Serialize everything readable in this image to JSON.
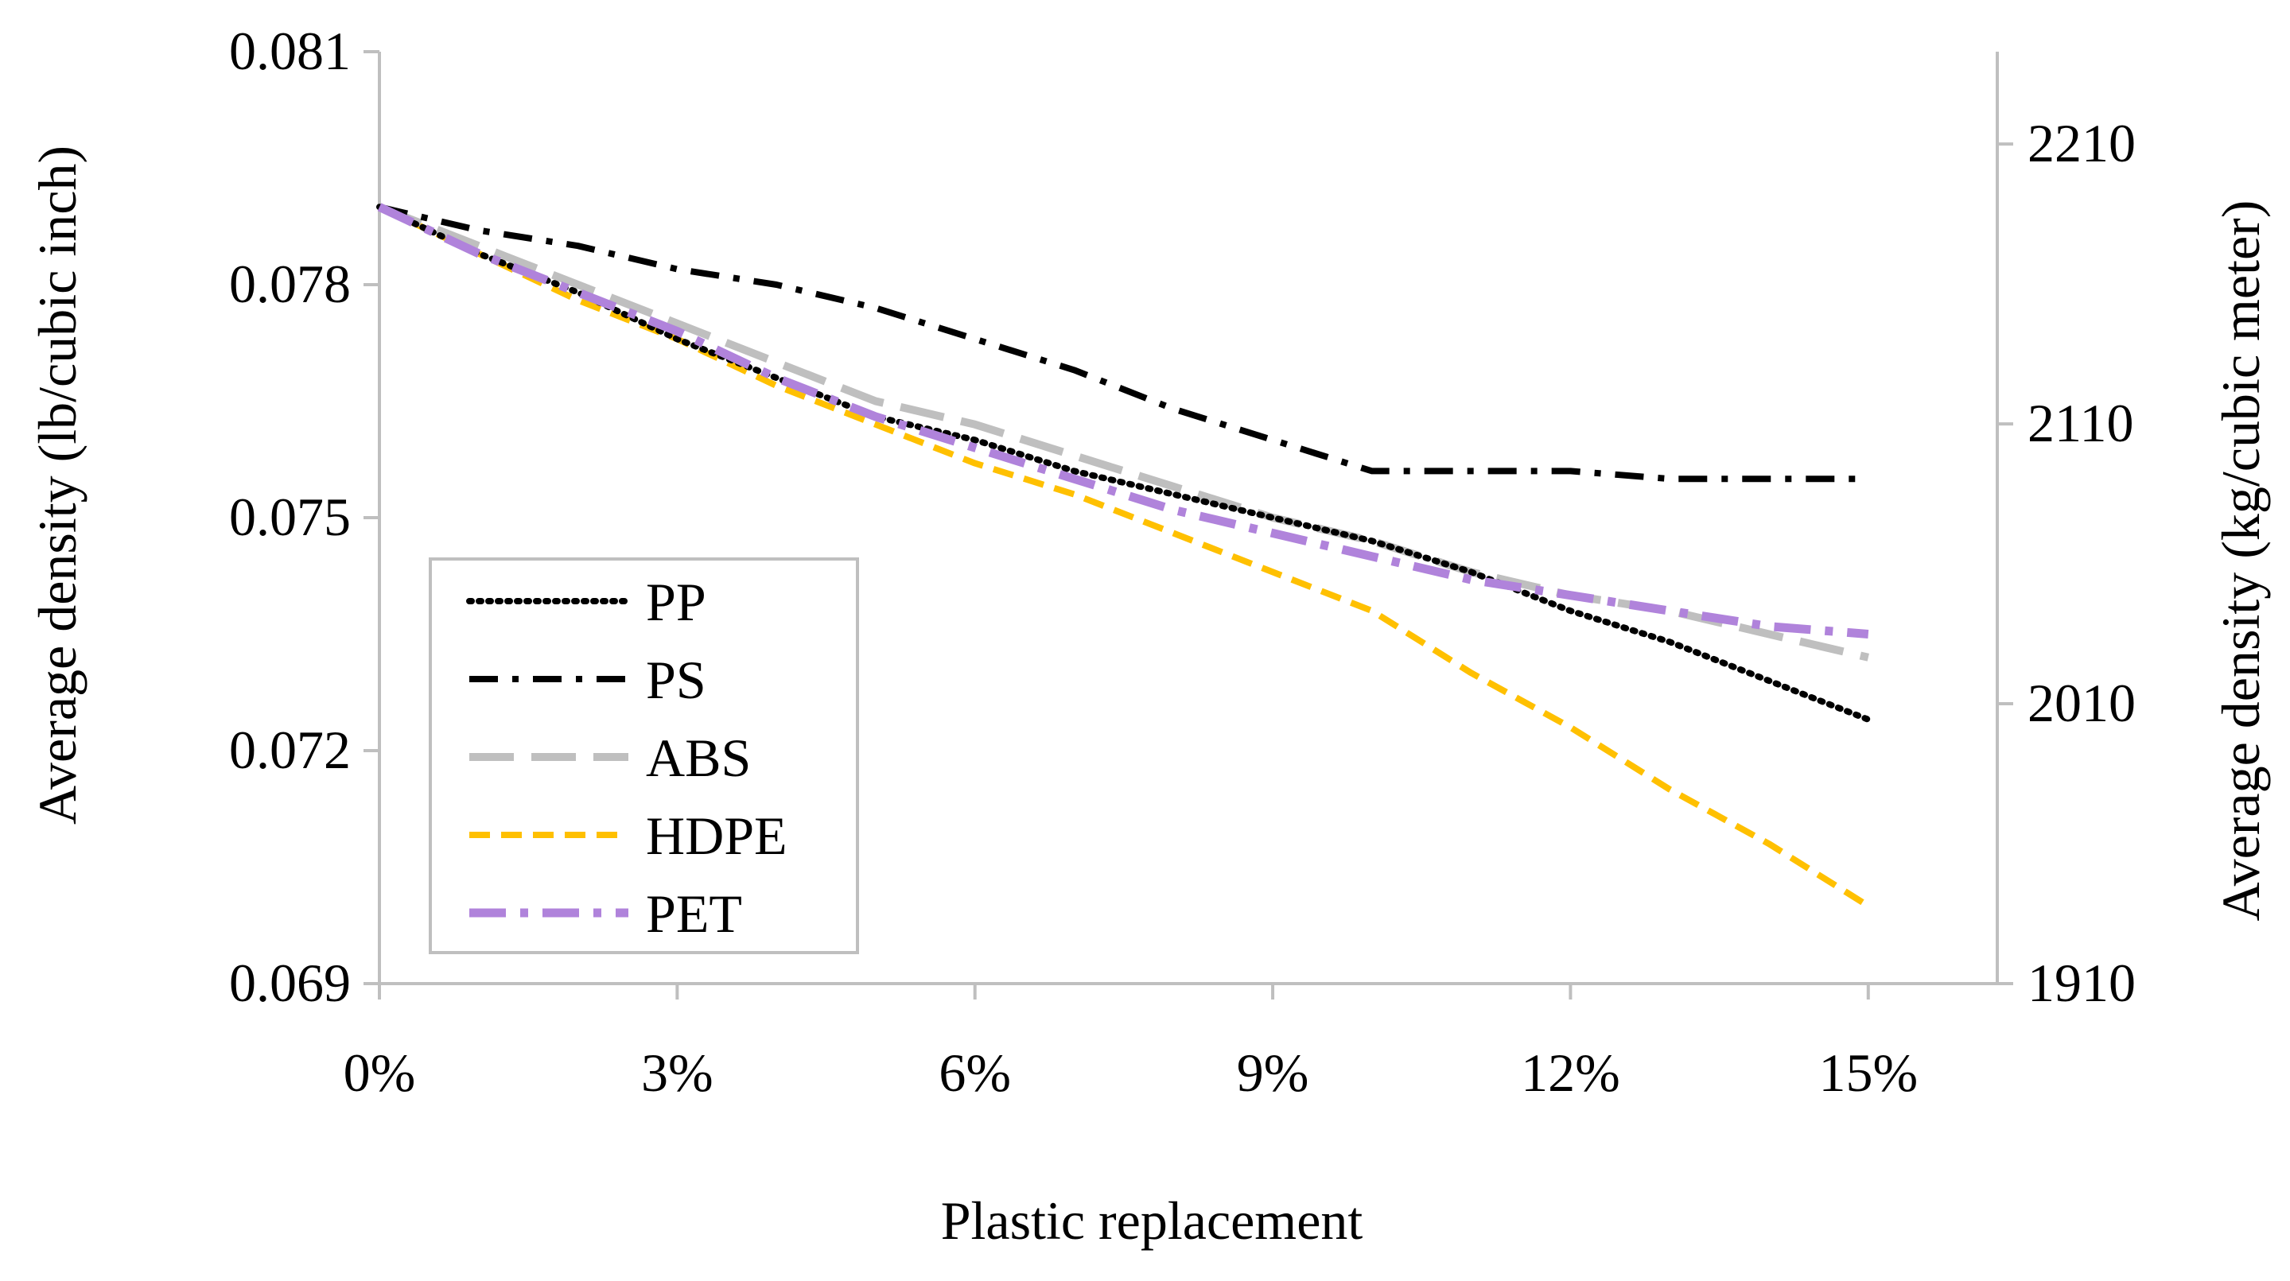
{
  "chart_data": {
    "type": "line",
    "title": "",
    "xlabel": "Plastic replacement",
    "ylabel": "Average density (lb/cubic inch)",
    "ylabel_right": "Average density (kg/cubic meter)",
    "x": [
      0,
      1,
      2,
      3,
      4,
      5,
      6,
      7,
      8,
      9,
      10,
      11,
      12,
      13,
      14,
      15
    ],
    "x_ticks": [
      "0%",
      "3%",
      "6%",
      "9%",
      "12%",
      "15%"
    ],
    "x_tick_values": [
      0,
      3,
      6,
      9,
      12,
      15
    ],
    "xlim": [
      0,
      16.3
    ],
    "ylim": [
      0.069,
      0.081
    ],
    "y_ticks": [
      "0.069",
      "0.072",
      "0.075",
      "0.078",
      "0.081"
    ],
    "y_tick_values": [
      0.069,
      0.072,
      0.075,
      0.078,
      0.081
    ],
    "ylim_right": [
      1910,
      2243
    ],
    "y_ticks_right": [
      "1910",
      "2010",
      "2110",
      "2210"
    ],
    "y_tick_values_right": [
      1910,
      2010,
      2110,
      2210
    ],
    "legend_position": "bottom-left",
    "series": [
      {
        "name": "PP",
        "style": "dotted",
        "color": "#000000",
        "values": [
          0.079,
          0.0784,
          0.0779,
          0.0773,
          0.0768,
          0.0763,
          0.076,
          0.0756,
          0.0753,
          0.075,
          0.0747,
          0.0743,
          0.0738,
          0.0734,
          0.0729,
          0.0724
        ]
      },
      {
        "name": "PS",
        "style": "dash-dot",
        "color": "#000000",
        "values": [
          0.079,
          0.0787,
          0.0785,
          0.0782,
          0.078,
          0.0777,
          0.0773,
          0.0769,
          0.0764,
          0.076,
          0.0756,
          0.0756,
          0.0756,
          0.0755,
          0.0755,
          0.0755
        ]
      },
      {
        "name": "ABS",
        "style": "long-dash",
        "color": "#bfbfbf",
        "values": [
          0.079,
          0.0785,
          0.078,
          0.0775,
          0.077,
          0.0765,
          0.0762,
          0.0758,
          0.0754,
          0.075,
          0.0747,
          0.0743,
          0.074,
          0.0738,
          0.0735,
          0.0732
        ]
      },
      {
        "name": "HDPE",
        "style": "dash",
        "color": "#ffc000",
        "values": [
          0.079,
          0.0784,
          0.0778,
          0.0773,
          0.0767,
          0.0762,
          0.0757,
          0.0753,
          0.0748,
          0.0743,
          0.0738,
          0.073,
          0.0723,
          0.0715,
          0.0708,
          0.07
        ]
      },
      {
        "name": "PET",
        "style": "dash-dot",
        "color": "#b083db",
        "values": [
          0.079,
          0.0784,
          0.0779,
          0.0774,
          0.0768,
          0.0763,
          0.0759,
          0.0755,
          0.0751,
          0.0748,
          0.0745,
          0.0742,
          0.074,
          0.0738,
          0.0736,
          0.0735
        ]
      }
    ]
  }
}
